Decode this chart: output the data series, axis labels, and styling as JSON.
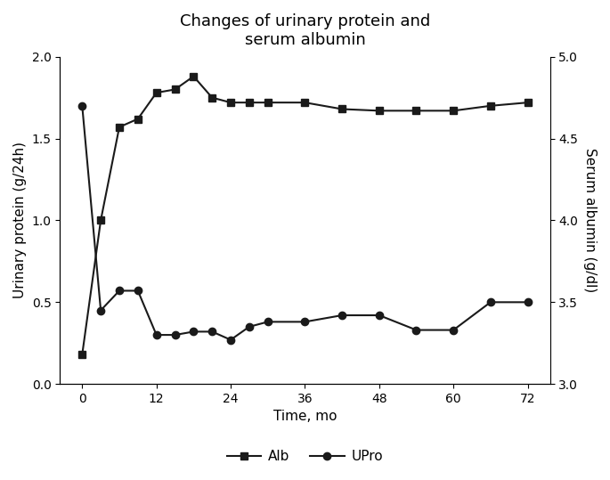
{
  "title": "Changes of urinary protein and\nserum albumin",
  "xlabel": "Time, mo",
  "ylabel_left": "Urinary protein (g/24h)",
  "ylabel_right": "Serum albumin (g/dl)",
  "alb_x": [
    0,
    3,
    6,
    9,
    12,
    15,
    18,
    21,
    24,
    27,
    30,
    36,
    42,
    48,
    54,
    60,
    66,
    72
  ],
  "alb_y": [
    0.18,
    1.0,
    1.57,
    1.62,
    1.78,
    1.8,
    1.88,
    1.75,
    1.72,
    1.72,
    1.72,
    1.72,
    1.68,
    1.67,
    1.67,
    1.67,
    1.7,
    1.72
  ],
  "upro_x": [
    0,
    3,
    6,
    9,
    12,
    15,
    18,
    21,
    24,
    27,
    30,
    36,
    42,
    48,
    54,
    60,
    66,
    72
  ],
  "upro_y": [
    4.7,
    3.45,
    3.57,
    3.57,
    3.3,
    3.3,
    3.32,
    3.32,
    3.27,
    3.35,
    3.38,
    3.38,
    3.42,
    3.42,
    3.33,
    3.33,
    3.5,
    3.5
  ],
  "ylim_left": [
    0.0,
    2.0
  ],
  "ylim_right": [
    3.0,
    5.0
  ],
  "yticks_left": [
    0.0,
    0.5,
    1.0,
    1.5,
    2.0
  ],
  "yticks_right": [
    3.0,
    3.5,
    4.0,
    4.5,
    5.0
  ],
  "xticks": [
    0,
    12,
    24,
    36,
    48,
    60,
    72
  ],
  "line_color": "#1a1a1a",
  "bg_color": "#ffffff",
  "title_fontsize": 13,
  "label_fontsize": 11,
  "tick_fontsize": 10,
  "legend_fontsize": 11
}
